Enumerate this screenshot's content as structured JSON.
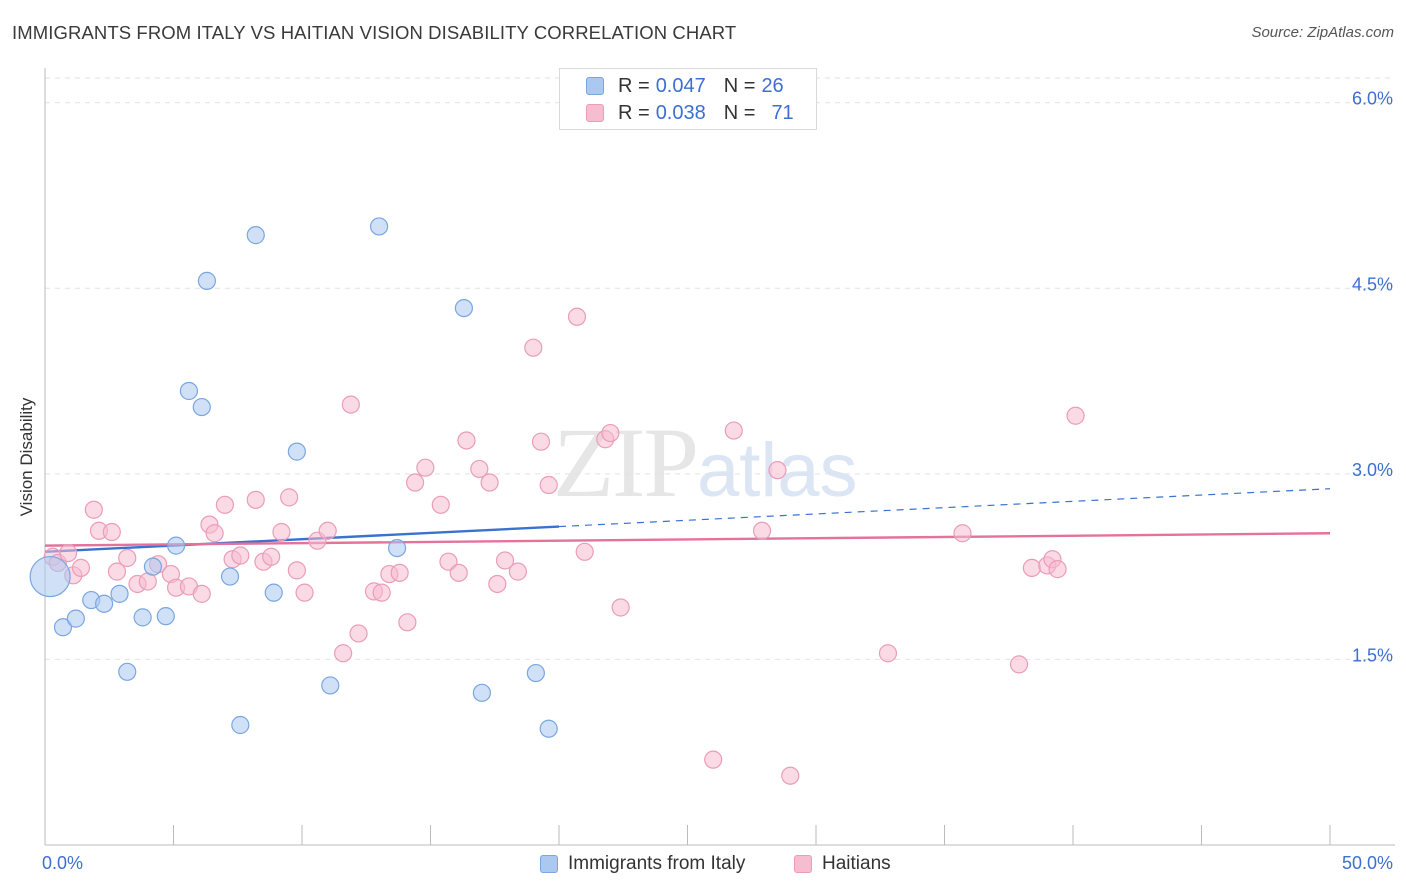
{
  "header": {
    "title": "IMMIGRANTS FROM ITALY VS HAITIAN VISION DISABILITY CORRELATION CHART",
    "source": "Source: ZipAtlas.com"
  },
  "watermark": {
    "zip": "ZIP",
    "atlas": "atlas"
  },
  "legend_top": {
    "rows": [
      {
        "r_label": "R =",
        "r_value": "0.047",
        "n_label": "N =",
        "n_value": "26"
      },
      {
        "r_label": "R =",
        "r_value": "0.038",
        "n_label": "N =",
        "n_value": "71"
      }
    ]
  },
  "colors": {
    "blue_fill": "#aac8f0",
    "blue_stroke": "#7aa6e0",
    "blue_line": "#3a72cf",
    "pink_fill": "#f6bcd0",
    "pink_stroke": "#eb9cb8",
    "pink_line": "#e4729b",
    "grid": "#e2e2e2",
    "axis_text": "#3c6fd1"
  },
  "chart_data": {
    "type": "scatter",
    "title": "IMMIGRANTS FROM ITALY VS HAITIAN VISION DISABILITY CORRELATION CHART",
    "xlabel": "",
    "ylabel": "Vision Disability",
    "xlim": [
      0,
      50
    ],
    "ylim": [
      0,
      6.2
    ],
    "x_tick_labels": [
      "0.0%",
      "50.0%"
    ],
    "y_ticks": [
      1.5,
      3.0,
      4.5,
      6.0
    ],
    "y_tick_labels": [
      "1.5%",
      "3.0%",
      "4.5%",
      "6.0%"
    ],
    "grid": true,
    "legend": "bottom-center",
    "series": [
      {
        "name": "Immigrants from Italy",
        "color": "blue",
        "points": [
          [
            0.2,
            2.17
          ],
          [
            0.7,
            1.76
          ],
          [
            1.2,
            1.83
          ],
          [
            1.8,
            1.98
          ],
          [
            2.3,
            1.95
          ],
          [
            2.9,
            2.03
          ],
          [
            3.2,
            1.4
          ],
          [
            3.8,
            1.84
          ],
          [
            4.2,
            2.25
          ],
          [
            4.7,
            1.85
          ],
          [
            5.1,
            2.42
          ],
          [
            5.6,
            3.67
          ],
          [
            6.1,
            3.54
          ],
          [
            6.3,
            4.56
          ],
          [
            7.2,
            2.17
          ],
          [
            7.6,
            0.97
          ],
          [
            8.2,
            4.93
          ],
          [
            8.9,
            2.04
          ],
          [
            9.8,
            3.18
          ],
          [
            11.1,
            1.29
          ],
          [
            13.0,
            5.0
          ],
          [
            13.7,
            2.4
          ],
          [
            16.3,
            4.34
          ],
          [
            17.0,
            1.23
          ],
          [
            19.1,
            1.39
          ],
          [
            19.6,
            0.94
          ]
        ],
        "trend": {
          "x_start": 0,
          "y_start": 2.37,
          "x_solid_end": 20,
          "x_end": 50,
          "y_end": 2.88
        }
      },
      {
        "name": "Haitians",
        "color": "pink",
        "points": [
          [
            0.3,
            2.33
          ],
          [
            0.5,
            2.28
          ],
          [
            0.9,
            2.36
          ],
          [
            1.1,
            2.18
          ],
          [
            1.4,
            2.24
          ],
          [
            1.9,
            2.71
          ],
          [
            2.1,
            2.54
          ],
          [
            2.6,
            2.53
          ],
          [
            2.8,
            2.21
          ],
          [
            3.2,
            2.32
          ],
          [
            3.6,
            2.11
          ],
          [
            4.0,
            2.13
          ],
          [
            4.4,
            2.27
          ],
          [
            4.9,
            2.19
          ],
          [
            5.1,
            2.08
          ],
          [
            5.6,
            2.09
          ],
          [
            6.1,
            2.03
          ],
          [
            6.4,
            2.59
          ],
          [
            6.6,
            2.52
          ],
          [
            7.0,
            2.75
          ],
          [
            7.3,
            2.31
          ],
          [
            7.6,
            2.34
          ],
          [
            8.2,
            2.79
          ],
          [
            8.5,
            2.29
          ],
          [
            8.8,
            2.33
          ],
          [
            9.2,
            2.53
          ],
          [
            9.5,
            2.81
          ],
          [
            9.8,
            2.22
          ],
          [
            10.1,
            2.04
          ],
          [
            10.6,
            2.46
          ],
          [
            11.0,
            2.54
          ],
          [
            11.6,
            1.55
          ],
          [
            11.9,
            3.56
          ],
          [
            12.2,
            1.71
          ],
          [
            12.8,
            2.05
          ],
          [
            13.1,
            2.04
          ],
          [
            13.4,
            2.19
          ],
          [
            13.8,
            2.2
          ],
          [
            14.1,
            1.8
          ],
          [
            14.4,
            2.93
          ],
          [
            14.8,
            3.05
          ],
          [
            15.4,
            2.75
          ],
          [
            15.7,
            2.29
          ],
          [
            16.1,
            2.2
          ],
          [
            16.4,
            3.27
          ],
          [
            16.9,
            3.04
          ],
          [
            17.3,
            2.93
          ],
          [
            17.6,
            2.11
          ],
          [
            17.9,
            2.3
          ],
          [
            18.4,
            2.21
          ],
          [
            19.0,
            4.02
          ],
          [
            19.3,
            3.26
          ],
          [
            19.6,
            2.91
          ],
          [
            20.7,
            4.27
          ],
          [
            21.0,
            2.37
          ],
          [
            21.8,
            3.28
          ],
          [
            22.0,
            3.33
          ],
          [
            22.4,
            1.92
          ],
          [
            26.0,
            0.69
          ],
          [
            26.8,
            3.35
          ],
          [
            27.9,
            2.54
          ],
          [
            28.5,
            3.03
          ],
          [
            29.0,
            0.56
          ],
          [
            32.8,
            1.55
          ],
          [
            35.7,
            2.52
          ],
          [
            37.9,
            1.46
          ],
          [
            38.4,
            2.24
          ],
          [
            39.0,
            2.26
          ],
          [
            39.2,
            2.31
          ],
          [
            39.4,
            2.23
          ],
          [
            40.1,
            3.47
          ]
        ],
        "trend": {
          "x_start": 0,
          "y_start": 2.42,
          "x_end": 50,
          "y_end": 2.52
        }
      }
    ]
  }
}
